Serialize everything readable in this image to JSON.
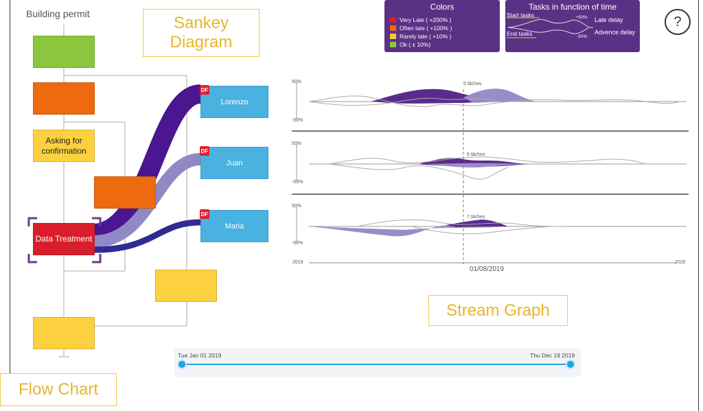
{
  "flow_chart": {
    "title": "Building permit",
    "nodes": {
      "confirm_label": "Asking for confirmation",
      "data_label": "Data Treatment"
    }
  },
  "sankey": {
    "people": [
      {
        "name": "Lorenzo",
        "badge": "DF"
      },
      {
        "name": "Juan",
        "badge": "DF"
      },
      {
        "name": "Maria",
        "badge": "DF"
      }
    ]
  },
  "callouts": {
    "sankey": "Sankey Diagram",
    "stream": "Stream Graph",
    "flow": "Flow Chart"
  },
  "legend_colors": {
    "title": "Colors",
    "items": [
      {
        "label": "Very Late ( +200% )",
        "color": "#d81e2c"
      },
      {
        "label": "Often late ( +100% )",
        "color": "#ee6a0f"
      },
      {
        "label": "Rarely late ( +10% )",
        "color": "#f6c833"
      },
      {
        "label": "Ok ( ± 10%)",
        "color": "#8cc63f"
      }
    ]
  },
  "legend_time": {
    "title": "Tasks in function of time",
    "start": "Start tasks",
    "end": "End tasks",
    "plus": "+50%",
    "minus": "-50%",
    "late": "Late delay",
    "advance": "Advence delay"
  },
  "help_label": "?",
  "stream": {
    "panels": [
      {
        "top_label": "50%",
        "bottom_label": "-50%",
        "annotation": "5 tâches"
      },
      {
        "top_label": "50%",
        "bottom_label": "-50%",
        "annotation": "6 tâches"
      },
      {
        "top_label": "50%",
        "bottom_label": "-50%",
        "annotation": "7 tâches"
      }
    ],
    "axis_start": "2019",
    "axis_end": "2020",
    "marker_date": "01/08/2019"
  },
  "slider": {
    "start_label": "Tue Jan 01 2019",
    "end_label": "Thu Dec 19 2019"
  },
  "colors": {
    "accent": "#5b3185",
    "sankey_dark": "#4a1790",
    "sankey_light": "#9089c6",
    "sankey_navy": "#302a92"
  }
}
